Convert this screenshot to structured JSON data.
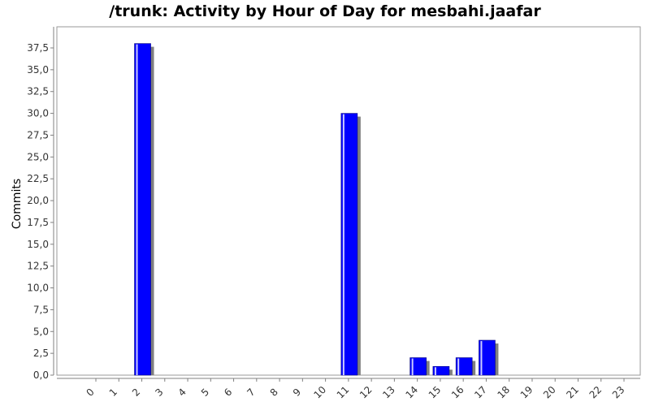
{
  "chart_data": {
    "type": "bar",
    "title": "/trunk: Activity by Hour of Day for mesbahi.jaafar",
    "xlabel": "",
    "ylabel": "Commits",
    "categories": [
      "0",
      "1",
      "2",
      "3",
      "4",
      "5",
      "6",
      "7",
      "8",
      "9",
      "10",
      "11",
      "12",
      "13",
      "14",
      "15",
      "16",
      "17",
      "18",
      "19",
      "20",
      "21",
      "22",
      "23"
    ],
    "values": [
      0,
      0,
      38,
      0,
      0,
      0,
      0,
      0,
      0,
      0,
      0,
      30,
      0,
      0,
      2,
      1,
      2,
      4,
      0,
      0,
      0,
      0,
      0,
      0
    ],
    "ylim": [
      0,
      40
    ],
    "yticks": [
      "0,0",
      "2,5",
      "5,0",
      "7,5",
      "10,0",
      "12,5",
      "15,0",
      "17,5",
      "20,0",
      "22,5",
      "25,0",
      "27,5",
      "30,0",
      "32,5",
      "35,0",
      "37,5"
    ],
    "grid": false,
    "legend": "none",
    "bar_color": "#0000ff",
    "shadow_color": "#808080"
  }
}
